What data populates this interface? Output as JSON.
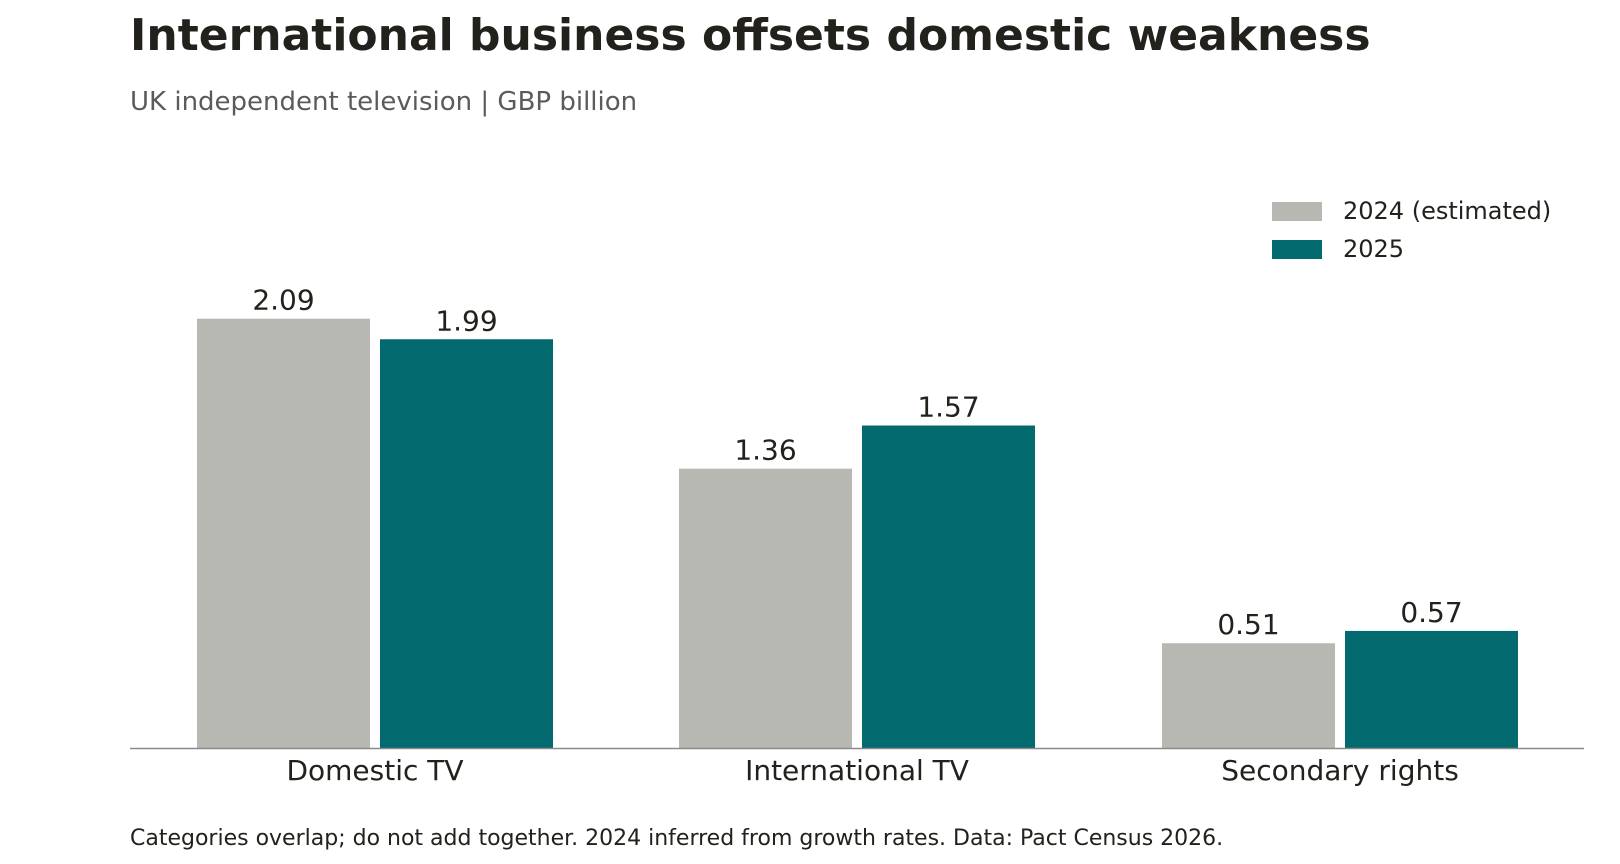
{
  "chart_data": {
    "type": "bar",
    "title": "International business offsets domestic weakness",
    "subtitle": "UK independent television | GBP billion",
    "footnote": "Categories overlap; do not add together. 2024 inferred from growth rates. Data: Pact Census 2026.",
    "categories": [
      "Domestic TV",
      "International TV",
      "Secondary rights"
    ],
    "series": [
      {
        "name": "2024 (estimated)",
        "color": "#b7b8b2",
        "values": [
          2.09,
          1.36,
          0.51
        ],
        "labels": [
          "2.09",
          "1.36",
          "0.51"
        ]
      },
      {
        "name": "2025",
        "color": "#02696e",
        "values": [
          1.99,
          1.57,
          0.57
        ],
        "labels": [
          "1.99",
          "1.57",
          "0.57"
        ]
      }
    ],
    "ylim": [
      0,
      2.2
    ],
    "xlabel": "",
    "ylabel": "",
    "grid": false,
    "legend_position": "top-right",
    "axis_color": "#8a8a8a"
  }
}
